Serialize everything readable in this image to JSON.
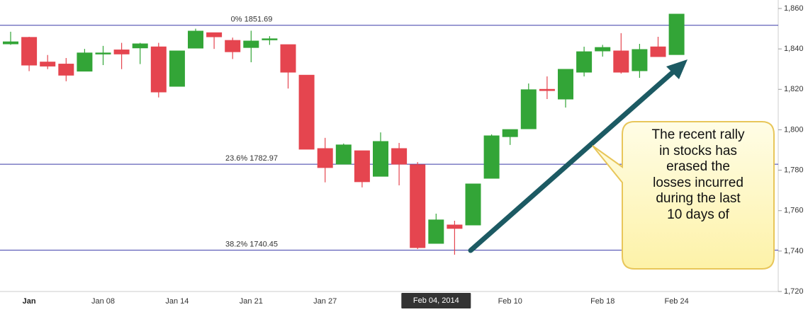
{
  "chart_data": {
    "type": "candlestick",
    "categories": [
      null,
      "Jan",
      null,
      null,
      null,
      "Jan 08",
      null,
      null,
      null,
      "Jan 14",
      null,
      null,
      null,
      "Jan 21",
      null,
      null,
      null,
      "Jan 27",
      null,
      null,
      null,
      null,
      null,
      "Feb 04, 2014",
      null,
      null,
      null,
      "Feb 10",
      null,
      null,
      null,
      null,
      "Feb 18",
      null,
      null,
      null,
      "Feb 24"
    ],
    "highlight": 23,
    "open": [
      1842.5,
      1845.7,
      1833.5,
      1832.5,
      1829,
      1837.5,
      1839.5,
      1840.5,
      1841,
      1821.5,
      1840.4,
      1848,
      1844.2,
      1840.7,
      1844.6,
      1842.1,
      1827,
      1790.7,
      1783,
      1789.6,
      1777,
      1790.7,
      1782.7,
      1743.8,
      1752.9,
      1752.9,
      1776,
      1796.6,
      1800.5,
      1820,
      1815.2,
      1828.5,
      1839,
      1839,
      1829.2,
      1841,
      1837.2
    ],
    "high": [
      1848.5,
      1846,
      1837,
      1835.5,
      1840,
      1841.5,
      1843,
      1843,
      1843,
      1839,
      1850,
      1848,
      1845.6,
      1849,
      1846.3,
      1842.1,
      1827,
      1796,
      1793.2,
      1789.6,
      1798.7,
      1793.5,
      1784,
      1758.5,
      1755,
      1773.2,
      1797.7,
      1800.1,
      1822.9,
      1826.4,
      1829.9,
      1841.1,
      1842,
      1847.8,
      1842.5,
      1846,
      1857.2
    ],
    "low": [
      1842,
      1829,
      1830,
      1824,
      1829,
      1832,
      1830,
      1832.5,
      1816,
      1821.5,
      1840.4,
      1840,
      1835,
      1833.4,
      1842,
      1820.4,
      1790.4,
      1774,
      1783,
      1771.5,
      1777,
      1772.5,
      1741,
      1743.8,
      1738.2,
      1752.9,
      1776,
      1792.5,
      1800.5,
      1815.2,
      1811,
      1826.4,
      1836.2,
      1827.8,
      1825.7,
      1836.2,
      1837.2
    ],
    "close": [
      1843.5,
      1832,
      1831.5,
      1827,
      1838,
      1838,
      1837.5,
      1842.5,
      1818.7,
      1839,
      1848.8,
      1846,
      1838.6,
      1843.9,
      1845,
      1828.5,
      1790.4,
      1781.3,
      1792.5,
      1774.3,
      1794.2,
      1783,
      1741.7,
      1755.4,
      1751.2,
      1773.2,
      1797,
      1800.1,
      1819.8,
      1819.4,
      1829.9,
      1838.6,
      1840.7,
      1828.5,
      1839.7,
      1836.2,
      1857.2
    ],
    "up_color": "#33a537",
    "down_color": "#e5454f",
    "levels": [
      {
        "value": 1851.69,
        "label": "0% 1851.69"
      },
      {
        "value": 1782.97,
        "label": "23.6% 1782.97"
      },
      {
        "value": 1740.45,
        "label": "38.2% 1740.45"
      }
    ],
    "level_color": "#3a3aa8",
    "ylim": [
      1720,
      1860
    ],
    "yticks": [
      {
        "value": 1720,
        "label": "1,720"
      },
      {
        "value": 1740,
        "label": "1,740"
      },
      {
        "value": 1760,
        "label": "1,760"
      },
      {
        "value": 1780,
        "label": "1,780"
      },
      {
        "value": 1800,
        "label": "1,800"
      },
      {
        "value": 1820,
        "label": "1,820"
      },
      {
        "value": 1840,
        "label": "1,840"
      },
      {
        "value": 1860,
        "label": "1,860"
      }
    ],
    "callout_lines": [
      "The recent rally",
      "in stocks has",
      "erased the",
      "losses incurred",
      "during the last",
      "10 days of"
    ]
  }
}
